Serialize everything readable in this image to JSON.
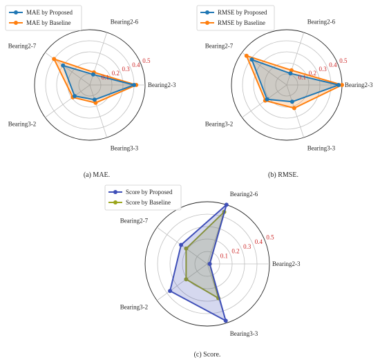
{
  "chart_data": [
    {
      "type": "radar",
      "caption": "(a) MAE.",
      "categories": [
        "Bearing2-3",
        "Bearing2-6",
        "Bearing2-7",
        "Bearing3-2",
        "Bearing3-3"
      ],
      "rlim": [
        0,
        0.5
      ],
      "rticks": [
        0.1,
        0.2,
        0.3,
        0.4,
        0.5
      ],
      "rtick_labels": [
        "0.1",
        "0.2",
        "0.3",
        "0.4",
        "0.5"
      ],
      "grid": true,
      "legend_position": "top-left",
      "series": [
        {
          "name": "MAE by Proposed",
          "values": [
            0.4,
            0.1,
            0.3,
            0.17,
            0.14
          ],
          "color": "#1f77b4",
          "marker": "circle"
        },
        {
          "name": "MAE by Baseline",
          "values": [
            0.42,
            0.12,
            0.4,
            0.19,
            0.17
          ],
          "color": "#ff7f0e",
          "marker": "circle"
        }
      ]
    },
    {
      "type": "radar",
      "caption": "(b) RMSE.",
      "categories": [
        "Bearing2-3",
        "Bearing2-6",
        "Bearing2-7",
        "Bearing3-2",
        "Bearing3-3"
      ],
      "rlim": [
        0,
        0.5
      ],
      "rticks": [
        0.1,
        0.2,
        0.3,
        0.4,
        0.5
      ],
      "rtick_labels": [
        "0.1",
        "0.2",
        "0.3",
        "0.4",
        "0.5"
      ],
      "grid": true,
      "legend_position": "top-left",
      "series": [
        {
          "name": "RMSE by Proposed",
          "values": [
            0.47,
            0.11,
            0.39,
            0.22,
            0.16
          ],
          "color": "#1f77b4",
          "marker": "circle"
        },
        {
          "name": "RMSE by Baseline",
          "values": [
            0.5,
            0.14,
            0.45,
            0.24,
            0.22
          ],
          "color": "#ff7f0e",
          "marker": "circle"
        }
      ]
    },
    {
      "type": "radar",
      "caption": "(c) Score.",
      "categories": [
        "Bearing2-3",
        "Bearing2-6",
        "Bearing2-7",
        "Bearing3-2",
        "Bearing3-3"
      ],
      "rlim": [
        0,
        0.5
      ],
      "rticks": [
        0.1,
        0.2,
        0.3,
        0.4,
        0.5
      ],
      "rtick_labels": [
        "0.1",
        "0.2",
        "0.3",
        "0.4",
        "0.5"
      ],
      "grid": true,
      "legend_position": "top-left",
      "series": [
        {
          "name": "Score by Proposed",
          "values": [
            0.02,
            0.5,
            0.26,
            0.37,
            0.48
          ],
          "color": "#3f4fb8",
          "marker": "circle"
        },
        {
          "name": "Score by Baseline",
          "values": [
            0.02,
            0.44,
            0.21,
            0.21,
            0.29
          ],
          "color": "#9aa51a",
          "marker": "circle"
        }
      ]
    }
  ]
}
